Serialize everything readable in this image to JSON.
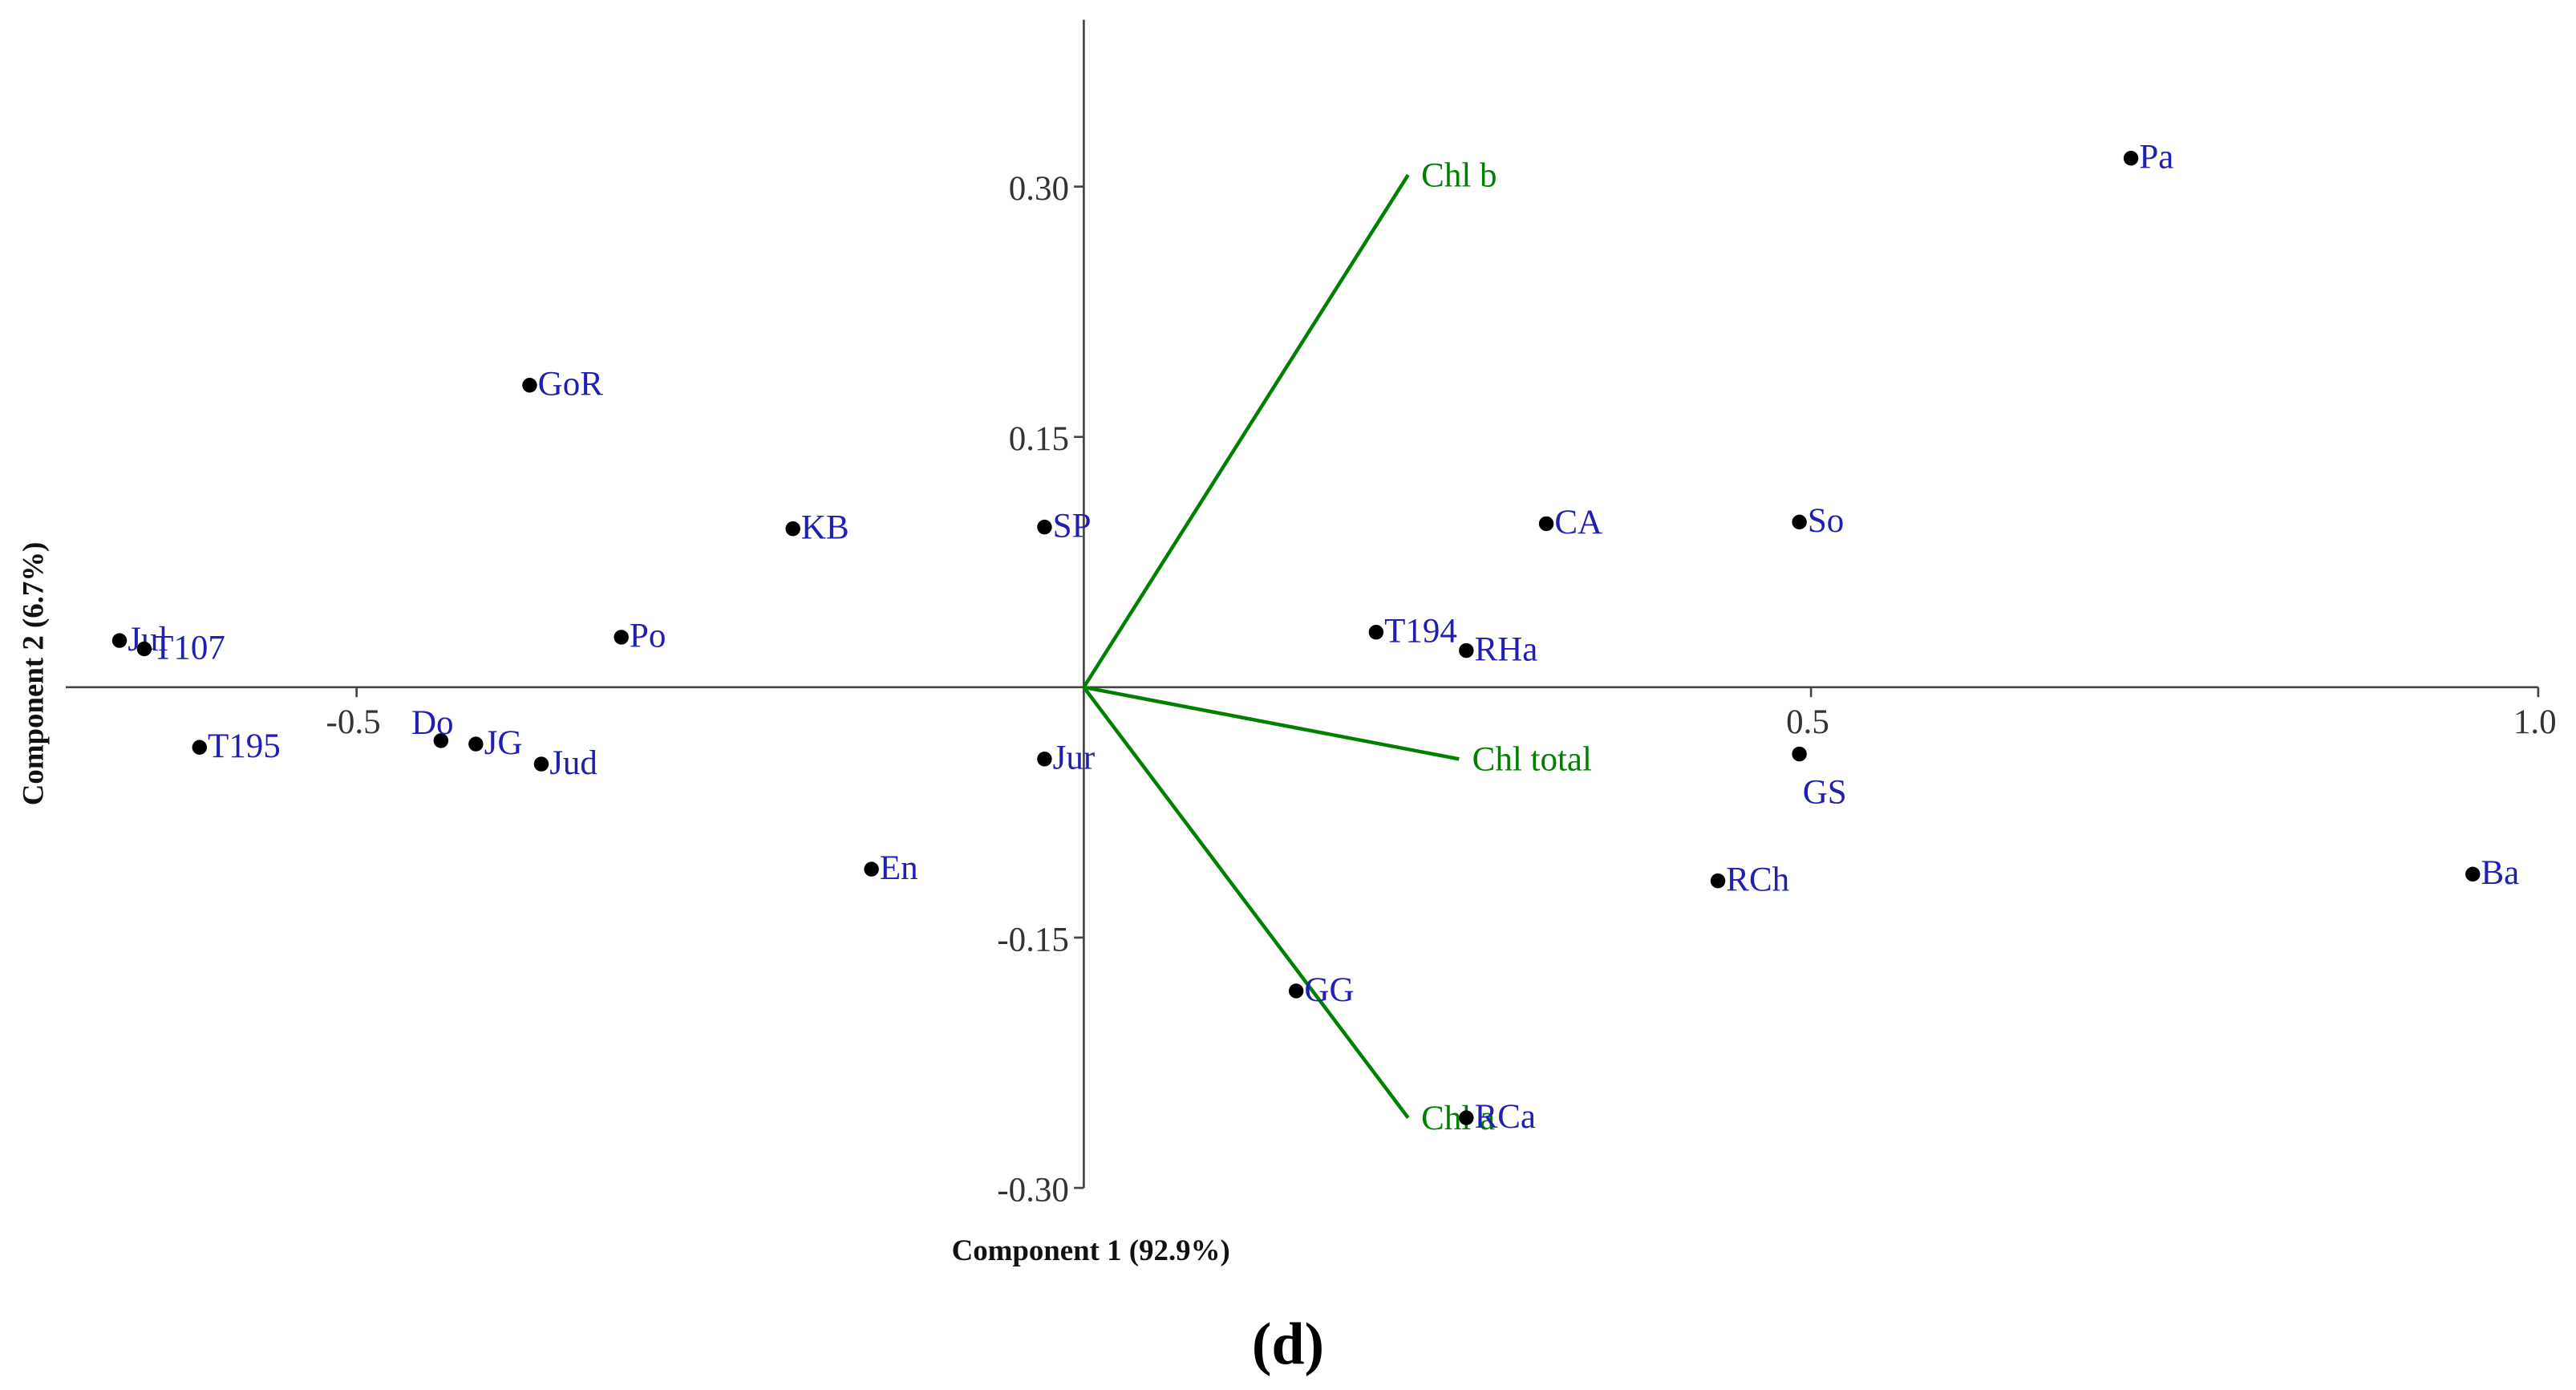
{
  "chart_data": {
    "type": "biplot",
    "x_label": "Component 1 (92.9%)",
    "y_label": "Component 2 (6.7%)",
    "caption": "(d)",
    "xlim": [
      -0.7,
      1.0
    ],
    "ylim": [
      -0.3,
      0.4
    ],
    "xticks": [
      -0.5,
      0.5,
      {
        "value": 1,
        "label": "1.0"
      }
    ],
    "yticks": [
      {
        "value": 0.3,
        "label": "0.30"
      },
      0.15,
      -0.15,
      {
        "value": -0.3,
        "label": "-0.30"
      }
    ],
    "points": {
      "color": "#000000",
      "label_color": "#2020b0",
      "labels": [
        "Pa",
        "GoR",
        "KB",
        "SP",
        "CA",
        "So",
        "Jul",
        "T107",
        "Po",
        "T194",
        "RHa",
        "T195",
        "Do",
        "JG",
        "Jud",
        "Jur",
        "GS",
        "En",
        "RCh",
        "Ba",
        "GG",
        "RCa"
      ],
      "x": [
        0.72,
        -0.381,
        -0.2,
        -0.027,
        0.318,
        0.492,
        -0.663,
        -0.646,
        -0.318,
        0.201,
        0.263,
        -0.608,
        -0.442,
        -0.418,
        -0.373,
        -0.027,
        0.492,
        -0.146,
        0.436,
        0.955,
        0.146,
        0.263
      ],
      "y": [
        0.317,
        0.181,
        0.095,
        0.096,
        0.098,
        0.099,
        0.028,
        0.023,
        0.03,
        0.033,
        0.022,
        -0.036,
        -0.032,
        -0.034,
        -0.046,
        -0.043,
        -0.04,
        -0.109,
        -0.116,
        -0.112,
        -0.182,
        -0.258
      ]
    },
    "loadings": {
      "color": "#008000",
      "labels": [
        "Chl b",
        "Chl total",
        "Chl a"
      ],
      "x": [
        0.223,
        0.258,
        0.223
      ],
      "y": [
        0.307,
        -0.043,
        -0.258
      ]
    }
  }
}
